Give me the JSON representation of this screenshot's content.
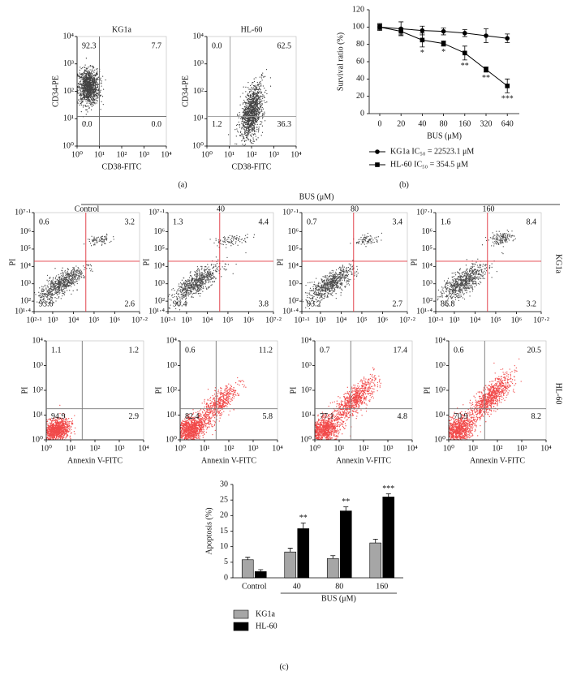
{
  "figure": {
    "panel_labels": [
      "(a)",
      "(b)",
      "(c)"
    ],
    "treatment_label": "BUS (μM)",
    "row_labels": [
      "KG1a",
      "HL-60"
    ]
  },
  "chart_data": [
    {
      "type": "flow",
      "title": "KG1a",
      "xlabel": "CD38-FITC",
      "ylabel": "CD34-PE",
      "xlog": true,
      "ylog": true,
      "xlim": [
        1,
        10000
      ],
      "ylim": [
        1,
        10000
      ],
      "xticks": [
        {
          "value": 1,
          "label": "10⁰"
        },
        {
          "value": 10,
          "label": "10¹"
        },
        {
          "value": 100,
          "label": "10²"
        },
        {
          "value": 1000,
          "label": "10³"
        },
        {
          "value": 10000,
          "label": "10⁴"
        }
      ],
      "yticks": [
        {
          "value": 1,
          "label": "10⁰"
        },
        {
          "value": 10,
          "label": "10¹"
        },
        {
          "value": 100,
          "label": "10²"
        },
        {
          "value": 1000,
          "label": "10³"
        },
        {
          "value": 10000,
          "label": "10⁴"
        }
      ],
      "gate": [
        10,
        12
      ],
      "gate_color": "#666666",
      "color": "#111111",
      "values": [
        92.3,
        7.7,
        0,
        0
      ],
      "value_labels": [
        "92.3",
        "7.7",
        "0.0",
        "0.0"
      ]
    },
    {
      "type": "flow",
      "title": "HL-60",
      "xlabel": "CD38-FITC",
      "ylabel": "CD34-PE",
      "xlog": true,
      "ylog": true,
      "xlim": [
        1,
        10000
      ],
      "ylim": [
        1,
        10000
      ],
      "xticks": [
        {
          "value": 1,
          "label": "10⁰"
        },
        {
          "value": 10,
          "label": "10¹"
        },
        {
          "value": 100,
          "label": "10²"
        },
        {
          "value": 1000,
          "label": "10³"
        },
        {
          "value": 10000,
          "label": "10⁴"
        }
      ],
      "yticks": [
        {
          "value": 1,
          "label": "10⁰"
        },
        {
          "value": 10,
          "label": "10¹"
        },
        {
          "value": 100,
          "label": "10²"
        },
        {
          "value": 1000,
          "label": "10³"
        },
        {
          "value": 10000,
          "label": "10⁴"
        }
      ],
      "gate": [
        11,
        12
      ],
      "gate_color": "#999999",
      "color": "#111111",
      "values": [
        0,
        62.5,
        1.2,
        36.3
      ],
      "value_labels": [
        "0.0",
        "62.5",
        "1.2",
        "36.3"
      ]
    },
    {
      "type": "line",
      "xlabel": "BUS (μM)",
      "ylabel": "Survival ratio (%)",
      "categories": [
        "0",
        "20",
        "40",
        "80",
        "160",
        "320",
        "640"
      ],
      "ylim": [
        0,
        120
      ],
      "yticks": [
        0,
        20,
        40,
        60,
        80,
        100,
        120
      ],
      "series": [
        {
          "name": "KG1a IC₅₀ = 22523.1 μM",
          "color": "#000000",
          "marker": "circle",
          "values": [
            100,
            98,
            96,
            95,
            93,
            90,
            87
          ],
          "errors": [
            4,
            8,
            5,
            4,
            4,
            8,
            5
          ]
        },
        {
          "name": "HL-60 IC₅₀ = 354.5 μM",
          "color": "#000000",
          "marker": "square",
          "values": [
            100,
            95,
            85,
            81,
            70,
            51,
            32
          ],
          "errors": [
            3,
            4,
            8,
            3,
            8,
            3,
            8
          ],
          "annotations": [
            null,
            null,
            "*",
            "*",
            "**",
            "**",
            "***"
          ]
        }
      ]
    },
    {
      "type": "flow",
      "title": "Control",
      "ylabel": "PI",
      "xlog": true,
      "ylog": true,
      "xlim": [
        126,
        15800000
      ],
      "ylim": [
        25,
        12600000
      ],
      "xticks": [
        {
          "value": 126,
          "label": "10²·¹"
        },
        {
          "value": 1000,
          "label": "10³"
        },
        {
          "value": 10000,
          "label": "10⁴"
        },
        {
          "value": 100000,
          "label": "10⁵"
        },
        {
          "value": 1000000,
          "label": "10⁶"
        },
        {
          "value": 15800000,
          "label": "10⁷·²"
        }
      ],
      "yticks": [
        {
          "value": 25,
          "label": "10¹·⁴"
        },
        {
          "value": 100,
          "label": "10²"
        },
        {
          "value": 1000,
          "label": "10³"
        },
        {
          "value": 10000,
          "label": "10⁴"
        },
        {
          "value": 100000,
          "label": "10⁵"
        },
        {
          "value": 1000000,
          "label": "10⁶"
        },
        {
          "value": 12600000,
          "label": "10⁷·¹"
        }
      ],
      "gate": [
        40000,
        20000
      ],
      "gate_color": "#e0303a",
      "color": "#222222",
      "values": [
        0.6,
        3.2,
        93.6,
        2.6
      ],
      "value_labels": [
        "0.6",
        "3.2",
        "93.6",
        "2.6"
      ]
    },
    {
      "type": "flow",
      "title": "40",
      "ylabel": "PI",
      "xlog": true,
      "ylog": true,
      "xlim": [
        126,
        15800000
      ],
      "ylim": [
        25,
        12600000
      ],
      "xticks": [
        {
          "value": 126,
          "label": "10²·¹"
        },
        {
          "value": 1000,
          "label": "10³"
        },
        {
          "value": 10000,
          "label": "10⁴"
        },
        {
          "value": 100000,
          "label": "10⁵"
        },
        {
          "value": 1000000,
          "label": "10⁶"
        },
        {
          "value": 15800000,
          "label": "10⁷·²"
        }
      ],
      "yticks": [
        {
          "value": 25,
          "label": "10¹·⁴"
        },
        {
          "value": 100,
          "label": "10²"
        },
        {
          "value": 1000,
          "label": "10³"
        },
        {
          "value": 10000,
          "label": "10⁴"
        },
        {
          "value": 100000,
          "label": "10⁵"
        },
        {
          "value": 1000000,
          "label": "10⁶"
        },
        {
          "value": 12600000,
          "label": "10⁷·¹"
        }
      ],
      "gate": [
        40000,
        20000
      ],
      "gate_color": "#e0303a",
      "color": "#222222",
      "values": [
        1.3,
        4.4,
        90.4,
        3.8
      ],
      "value_labels": [
        "1.3",
        "4.4",
        "90.4",
        "3.8"
      ]
    },
    {
      "type": "flow",
      "title": "80",
      "ylabel": "PI",
      "xlog": true,
      "ylog": true,
      "xlim": [
        126,
        15800000
      ],
      "ylim": [
        25,
        12600000
      ],
      "xticks": [
        {
          "value": 126,
          "label": "10²·¹"
        },
        {
          "value": 1000,
          "label": "10³"
        },
        {
          "value": 10000,
          "label": "10⁴"
        },
        {
          "value": 100000,
          "label": "10⁵"
        },
        {
          "value": 1000000,
          "label": "10⁶"
        },
        {
          "value": 15800000,
          "label": "10⁷·²"
        }
      ],
      "yticks": [
        {
          "value": 25,
          "label": "10¹·⁴"
        },
        {
          "value": 100,
          "label": "10²"
        },
        {
          "value": 1000,
          "label": "10³"
        },
        {
          "value": 10000,
          "label": "10⁴"
        },
        {
          "value": 100000,
          "label": "10⁵"
        },
        {
          "value": 1000000,
          "label": "10⁶"
        },
        {
          "value": 12600000,
          "label": "10⁷·¹"
        }
      ],
      "gate": [
        40000,
        20000
      ],
      "gate_color": "#e0303a",
      "color": "#222222",
      "values": [
        0.7,
        3.4,
        93.2,
        2.7
      ],
      "value_labels": [
        "0.7",
        "3.4",
        "93.2",
        "2.7"
      ]
    },
    {
      "type": "flow",
      "title": "160",
      "ylabel": "PI",
      "xlog": true,
      "ylog": true,
      "xlim": [
        126,
        15800000
      ],
      "ylim": [
        25,
        12600000
      ],
      "xticks": [
        {
          "value": 126,
          "label": "10²·¹"
        },
        {
          "value": 1000,
          "label": "10³"
        },
        {
          "value": 10000,
          "label": "10⁴"
        },
        {
          "value": 100000,
          "label": "10⁵"
        },
        {
          "value": 1000000,
          "label": "10⁶"
        },
        {
          "value": 15800000,
          "label": "10⁷·²"
        }
      ],
      "yticks": [
        {
          "value": 25,
          "label": "10¹·⁴"
        },
        {
          "value": 100,
          "label": "10²"
        },
        {
          "value": 1000,
          "label": "10³"
        },
        {
          "value": 10000,
          "label": "10⁴"
        },
        {
          "value": 100000,
          "label": "10⁵"
        },
        {
          "value": 1000000,
          "label": "10⁶"
        },
        {
          "value": 12600000,
          "label": "10⁷·¹"
        }
      ],
      "gate": [
        40000,
        20000
      ],
      "gate_color": "#e0303a",
      "color": "#222222",
      "values": [
        1.6,
        8.4,
        86.8,
        3.2
      ],
      "value_labels": [
        "1.6",
        "8.4",
        "86.8",
        "3.2"
      ]
    },
    {
      "type": "flow",
      "xlabel": "Annexin V-FITC",
      "ylabel": "PI",
      "xlog": true,
      "ylog": true,
      "xlim": [
        1,
        10000
      ],
      "ylim": [
        1,
        10000
      ],
      "xticks": [
        {
          "value": 1,
          "label": "10⁰"
        },
        {
          "value": 10,
          "label": "10¹"
        },
        {
          "value": 100,
          "label": "10²"
        },
        {
          "value": 1000,
          "label": "10³"
        },
        {
          "value": 10000,
          "label": "10⁴"
        }
      ],
      "yticks": [
        {
          "value": 1,
          "label": "10⁰"
        },
        {
          "value": 10,
          "label": "10¹"
        },
        {
          "value": 100,
          "label": "10²"
        },
        {
          "value": 1000,
          "label": "10³"
        },
        {
          "value": 10000,
          "label": "10⁴"
        }
      ],
      "gate": [
        30,
        18
      ],
      "gate_color": "#777777",
      "color": "#ee1c1c",
      "values": [
        1.1,
        1.2,
        94.9,
        2.9
      ],
      "value_labels": [
        "1.1",
        "1.2",
        "94.9",
        "2.9"
      ]
    },
    {
      "type": "flow",
      "xlabel": "Annexin V-FITC",
      "ylabel": "PI",
      "xlog": true,
      "ylog": true,
      "xlim": [
        1,
        10000
      ],
      "ylim": [
        1,
        10000
      ],
      "xticks": [
        {
          "value": 1,
          "label": "10⁰"
        },
        {
          "value": 10,
          "label": "10¹"
        },
        {
          "value": 100,
          "label": "10²"
        },
        {
          "value": 1000,
          "label": "10³"
        },
        {
          "value": 10000,
          "label": "10⁴"
        }
      ],
      "yticks": [
        {
          "value": 1,
          "label": "10⁰"
        },
        {
          "value": 10,
          "label": "10¹"
        },
        {
          "value": 100,
          "label": "10²"
        },
        {
          "value": 1000,
          "label": "10³"
        },
        {
          "value": 10000,
          "label": "10⁴"
        }
      ],
      "gate": [
        30,
        18
      ],
      "gate_color": "#777777",
      "color": "#ee1c1c",
      "values": [
        0.6,
        11.2,
        82.4,
        5.8
      ],
      "value_labels": [
        "0.6",
        "11.2",
        "82.4",
        "5.8"
      ]
    },
    {
      "type": "flow",
      "xlabel": "Annexin V-FITC",
      "ylabel": "PI",
      "xlog": true,
      "ylog": true,
      "xlim": [
        1,
        10000
      ],
      "ylim": [
        1,
        10000
      ],
      "xticks": [
        {
          "value": 1,
          "label": "10⁰"
        },
        {
          "value": 10,
          "label": "10¹"
        },
        {
          "value": 100,
          "label": "10²"
        },
        {
          "value": 1000,
          "label": "10³"
        },
        {
          "value": 10000,
          "label": "10⁴"
        }
      ],
      "yticks": [
        {
          "value": 1,
          "label": "10⁰"
        },
        {
          "value": 10,
          "label": "10¹"
        },
        {
          "value": 100,
          "label": "10²"
        },
        {
          "value": 1000,
          "label": "10³"
        },
        {
          "value": 10000,
          "label": "10⁴"
        }
      ],
      "gate": [
        30,
        18
      ],
      "gate_color": "#777777",
      "color": "#ee1c1c",
      "values": [
        0.7,
        17.4,
        77.1,
        4.8
      ],
      "value_labels": [
        "0.7",
        "17.4",
        "77.1",
        "4.8"
      ]
    },
    {
      "type": "flow",
      "xlabel": "Annexin V-FITC",
      "ylabel": "PI",
      "xlog": true,
      "ylog": true,
      "xlim": [
        1,
        10000
      ],
      "ylim": [
        1,
        10000
      ],
      "xticks": [
        {
          "value": 1,
          "label": "10⁰"
        },
        {
          "value": 10,
          "label": "10¹"
        },
        {
          "value": 100,
          "label": "10²"
        },
        {
          "value": 1000,
          "label": "10³"
        },
        {
          "value": 10000,
          "label": "10⁴"
        }
      ],
      "yticks": [
        {
          "value": 1,
          "label": "10⁰"
        },
        {
          "value": 10,
          "label": "10¹"
        },
        {
          "value": 100,
          "label": "10²"
        },
        {
          "value": 1000,
          "label": "10³"
        },
        {
          "value": 10000,
          "label": "10⁴"
        }
      ],
      "gate": [
        30,
        18
      ],
      "gate_color": "#777777",
      "color": "#ee1c1c",
      "values": [
        0.6,
        20.5,
        70.9,
        8.2
      ],
      "value_labels": [
        "0.6",
        "20.5",
        "70.9",
        "8.2"
      ]
    },
    {
      "type": "bar",
      "xlabel": "BUS (μM)",
      "ylabel": "Apoptosis (%)",
      "categories": [
        "Control",
        "40",
        "80",
        "160"
      ],
      "ylim": [
        0,
        30
      ],
      "yticks": [
        0,
        5,
        10,
        15,
        20,
        25,
        30
      ],
      "series": [
        {
          "name": "KG1a",
          "color": "#a6a6a6",
          "values": [
            5.8,
            8.3,
            6.2,
            11.2
          ],
          "errors": [
            0.8,
            1.2,
            0.9,
            1.2
          ]
        },
        {
          "name": "HL-60",
          "color": "#000000",
          "values": [
            2.0,
            15.8,
            21.5,
            26.0
          ],
          "errors": [
            0.6,
            1.8,
            1.3,
            1.0
          ],
          "annotations": [
            null,
            "**",
            "**",
            "***"
          ]
        }
      ]
    }
  ]
}
